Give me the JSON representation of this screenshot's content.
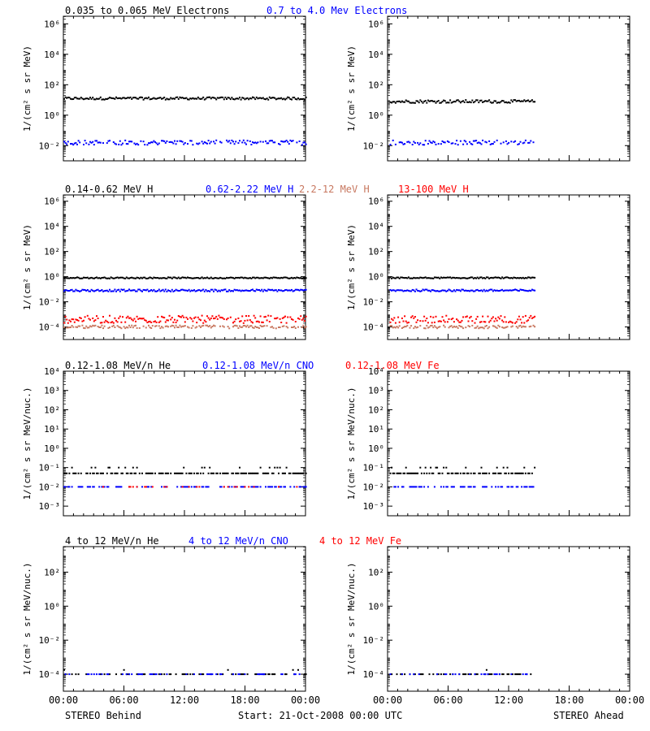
{
  "colors": {
    "black": "#000000",
    "blue": "#0000ff",
    "red": "#ff0000",
    "salmon": "#c87860"
  },
  "footer": {
    "left": "STEREO Behind",
    "center": "Start: 21-Oct-2008 00:00 UTC",
    "right": "STEREO Ahead"
  },
  "chart_data": [
    {
      "type": "scatter",
      "row": 1,
      "legend": [
        {
          "text": "0.035 to 0.065 MeV Electrons",
          "color": "#000000"
        },
        {
          "text": "0.7 to 4.0 Mev Electrons",
          "color": "#0000ff"
        }
      ],
      "ylabel": "1/(cm² s sr MeV)",
      "yscale": "log",
      "ylim_exp": [
        -3,
        6.5
      ],
      "yticks": [
        {
          "exp": -2,
          "label": "10⁻²"
        },
        {
          "exp": 0,
          "label": "10⁰"
        },
        {
          "exp": 2,
          "label": "10²"
        },
        {
          "exp": 4,
          "label": "10⁴"
        },
        {
          "exp": 6,
          "label": "10⁶"
        }
      ],
      "xticks": [
        "00:00",
        "06:00",
        "12:00",
        "18:00",
        "00:00"
      ],
      "xlim_hours": [
        0,
        24
      ],
      "panels": [
        {
          "spacecraft": "STEREO Behind",
          "series": [
            {
              "name": "0.035 to 0.065 MeV Electrons",
              "color": "#000000",
              "hours": [
                0,
                24
              ],
              "log10_value": 1.1,
              "scatter": 0.08,
              "density": 1.0
            },
            {
              "name": "0.7 to 4.0 Mev Electrons",
              "color": "#0000ff",
              "hours": [
                0,
                24
              ],
              "log10_value": -1.8,
              "scatter": 0.15,
              "density": 0.8
            }
          ]
        },
        {
          "spacecraft": "STEREO Ahead",
          "series": [
            {
              "name": "0.035 to 0.065 MeV Electrons",
              "color": "#000000",
              "hours": [
                0.2,
                14.6
              ],
              "log10_value": 0.9,
              "scatter": 0.1,
              "density": 1.0
            },
            {
              "name": "0.7 to 4.0 Mev Electrons",
              "color": "#0000ff",
              "hours": [
                0.2,
                14.6
              ],
              "log10_value": -1.8,
              "scatter": 0.15,
              "density": 0.7
            }
          ]
        }
      ]
    },
    {
      "type": "scatter",
      "row": 2,
      "legend": [
        {
          "text": "0.14-0.62 MeV H",
          "color": "#000000"
        },
        {
          "text": "0.62-2.22 MeV H",
          "color": "#0000ff"
        },
        {
          "text": "2.2-12 MeV H",
          "color": "#c87860"
        },
        {
          "text": "13-100 MeV H",
          "color": "#ff0000"
        }
      ],
      "ylabel": "1/(cm² s sr MeV)",
      "yscale": "log",
      "ylim_exp": [
        -5,
        6.5
      ],
      "yticks": [
        {
          "exp": -4,
          "label": "10⁻⁴"
        },
        {
          "exp": -2,
          "label": "10⁻²"
        },
        {
          "exp": 0,
          "label": "10⁰"
        },
        {
          "exp": 2,
          "label": "10²"
        },
        {
          "exp": 4,
          "label": "10⁴"
        },
        {
          "exp": 6,
          "label": "10⁶"
        }
      ],
      "xticks": [
        "00:00",
        "06:00",
        "12:00",
        "18:00",
        "00:00"
      ],
      "xlim_hours": [
        0,
        24
      ],
      "panels": [
        {
          "spacecraft": "STEREO Behind",
          "series": [
            {
              "name": "0.14-0.62 MeV H",
              "color": "#000000",
              "hours": [
                0,
                24
              ],
              "log10_value": -0.1,
              "scatter": 0.05,
              "density": 1.0
            },
            {
              "name": "0.62-2.22 MeV H",
              "color": "#0000ff",
              "hours": [
                0,
                24
              ],
              "log10_value": -1.1,
              "scatter": 0.08,
              "density": 1.0
            },
            {
              "name": "13-100 MeV H",
              "color": "#ff0000",
              "hours": [
                0,
                24
              ],
              "log10_value": -3.4,
              "scatter": 0.3,
              "density": 0.9
            },
            {
              "name": "2.2-12 MeV H",
              "color": "#c87860",
              "hours": [
                0,
                24
              ],
              "log10_value": -4.0,
              "scatter": 0.12,
              "density": 0.8
            }
          ]
        },
        {
          "spacecraft": "STEREO Ahead",
          "series": [
            {
              "name": "0.14-0.62 MeV H",
              "color": "#000000",
              "hours": [
                0.2,
                14.6
              ],
              "log10_value": -0.1,
              "scatter": 0.05,
              "density": 1.0
            },
            {
              "name": "0.62-2.22 MeV H",
              "color": "#0000ff",
              "hours": [
                0.2,
                14.6
              ],
              "log10_value": -1.1,
              "scatter": 0.08,
              "density": 1.0
            },
            {
              "name": "13-100 MeV H",
              "color": "#ff0000",
              "hours": [
                0.2,
                14.6
              ],
              "log10_value": -3.4,
              "scatter": 0.3,
              "density": 0.9
            },
            {
              "name": "2.2-12 MeV H",
              "color": "#c87860",
              "hours": [
                0.2,
                14.6
              ],
              "log10_value": -4.0,
              "scatter": 0.12,
              "density": 0.8
            }
          ]
        }
      ]
    },
    {
      "type": "scatter",
      "row": 3,
      "legend": [
        {
          "text": "0.12-1.08 MeV/n He",
          "color": "#000000"
        },
        {
          "text": "0.12-1.08 MeV/n CNO",
          "color": "#0000ff"
        },
        {
          "text": "0.12-1.08 MeV Fe",
          "color": "#ff0000"
        }
      ],
      "ylabel": "1/(cm² s sr MeV/nuc.)",
      "yscale": "log",
      "ylim_exp": [
        -3.5,
        4
      ],
      "yticks": [
        {
          "exp": -3,
          "label": "10⁻³"
        },
        {
          "exp": -2,
          "label": "10⁻²"
        },
        {
          "exp": -1,
          "label": "10⁻¹"
        },
        {
          "exp": 0,
          "label": "10⁰"
        },
        {
          "exp": 1,
          "label": "10¹"
        },
        {
          "exp": 2,
          "label": "10²"
        },
        {
          "exp": 3,
          "label": "10³"
        },
        {
          "exp": 4,
          "label": "10⁴"
        }
      ],
      "xticks": [
        "00:00",
        "06:00",
        "12:00",
        "18:00",
        "00:00"
      ],
      "xlim_hours": [
        0,
        24
      ],
      "panels": [
        {
          "spacecraft": "STEREO Behind",
          "series": [
            {
              "name": "0.12-1.08 MeV/n He",
              "color": "#000000",
              "hours": [
                0,
                24
              ],
              "log10_value": -1.3,
              "scatter": 0.0,
              "density": 0.75,
              "upper_log10": -1.0,
              "upper_density": 0.15
            },
            {
              "name": "0.12-1.08 MeV/n CNO",
              "color": "#0000ff",
              "hours": [
                0,
                24
              ],
              "log10_value": -2.0,
              "scatter": 0.0,
              "density": 0.45
            },
            {
              "name": "0.12-1.08 MeV Fe",
              "color": "#ff0000",
              "hours": [
                0,
                24
              ],
              "log10_value": -2.0,
              "scatter": 0.0,
              "density": 0.12
            }
          ]
        },
        {
          "spacecraft": "STEREO Ahead",
          "series": [
            {
              "name": "0.12-1.08 MeV/n He",
              "color": "#000000",
              "hours": [
                0.2,
                14.6
              ],
              "log10_value": -1.3,
              "scatter": 0.0,
              "density": 0.75,
              "upper_log10": -1.0,
              "upper_density": 0.15
            },
            {
              "name": "0.12-1.08 MeV/n CNO",
              "color": "#0000ff",
              "hours": [
                0.2,
                14.6
              ],
              "log10_value": -2.0,
              "scatter": 0.0,
              "density": 0.5
            }
          ]
        }
      ]
    },
    {
      "type": "scatter",
      "row": 4,
      "legend": [
        {
          "text": "4 to 12 MeV/n He",
          "color": "#000000"
        },
        {
          "text": "4 to 12 MeV/n CNO",
          "color": "#0000ff"
        },
        {
          "text": "4 to 12 MeV Fe",
          "color": "#ff0000"
        }
      ],
      "ylabel": "1/(cm² s sr MeV/nuc.)",
      "yscale": "log",
      "ylim_exp": [
        -5,
        3.5
      ],
      "yticks": [
        {
          "exp": -4,
          "label": "10⁻⁴"
        },
        {
          "exp": -2,
          "label": "10⁻²"
        },
        {
          "exp": 0,
          "label": "10⁰"
        },
        {
          "exp": 2,
          "label": "10²"
        }
      ],
      "xticks": [
        "00:00",
        "06:00",
        "12:00",
        "18:00",
        "00:00"
      ],
      "xlim_hours": [
        0,
        24
      ],
      "panels": [
        {
          "spacecraft": "STEREO Behind",
          "series": [
            {
              "name": "4 to 12 MeV/n He",
              "color": "#000000",
              "hours": [
                0,
                24
              ],
              "log10_value": -4.0,
              "scatter": 0.0,
              "density": 0.35,
              "upper_log10": -3.75,
              "upper_density": 0.05
            },
            {
              "name": "4 to 12 MeV/n CNO",
              "color": "#0000ff",
              "hours": [
                0,
                24
              ],
              "log10_value": -4.0,
              "scatter": 0.0,
              "density": 0.25
            }
          ]
        },
        {
          "spacecraft": "STEREO Ahead",
          "series": [
            {
              "name": "4 to 12 MeV/n He",
              "color": "#000000",
              "hours": [
                0.2,
                14.6
              ],
              "log10_value": -4.0,
              "scatter": 0.0,
              "density": 0.35,
              "upper_log10": -3.75,
              "upper_density": 0.04
            },
            {
              "name": "4 to 12 MeV/n CNO",
              "color": "#0000ff",
              "hours": [
                0.2,
                14.6
              ],
              "log10_value": -4.0,
              "scatter": 0.0,
              "density": 0.25
            }
          ]
        }
      ]
    }
  ]
}
